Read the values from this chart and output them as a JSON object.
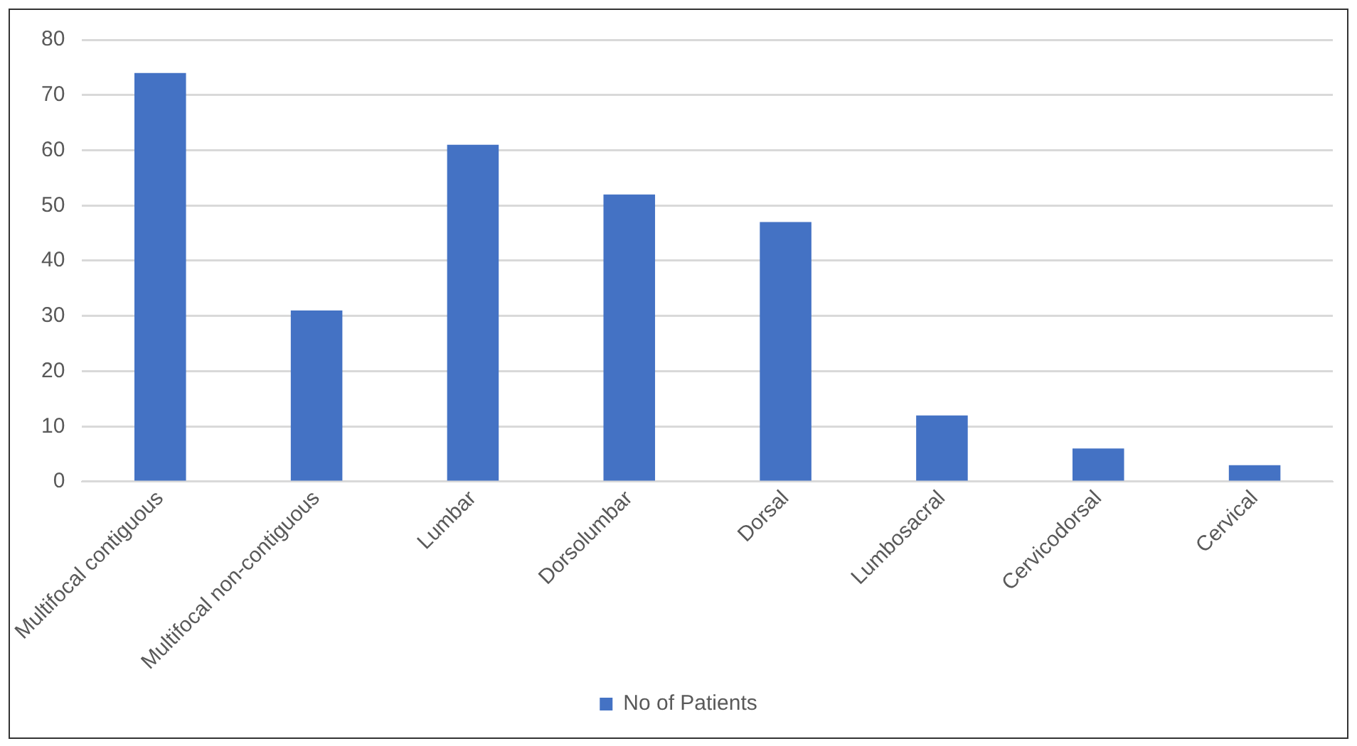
{
  "chart_data": {
    "type": "bar",
    "categories": [
      "Multifocal contiguous",
      "Multifocal non-contiguous",
      "Lumbar",
      "Dorsolumbar",
      "Dorsal",
      "Lumbosacral",
      "Cervicodorsal",
      "Cervical"
    ],
    "series": [
      {
        "name": "No of Patients",
        "color": "#4472c4",
        "values": [
          74,
          31,
          61,
          52,
          47,
          12,
          6,
          3
        ]
      }
    ],
    "ylim": [
      0,
      80
    ],
    "yticks": [
      0,
      10,
      20,
      30,
      40,
      50,
      60,
      70,
      80
    ],
    "grid": "y",
    "legend": "bottom"
  }
}
